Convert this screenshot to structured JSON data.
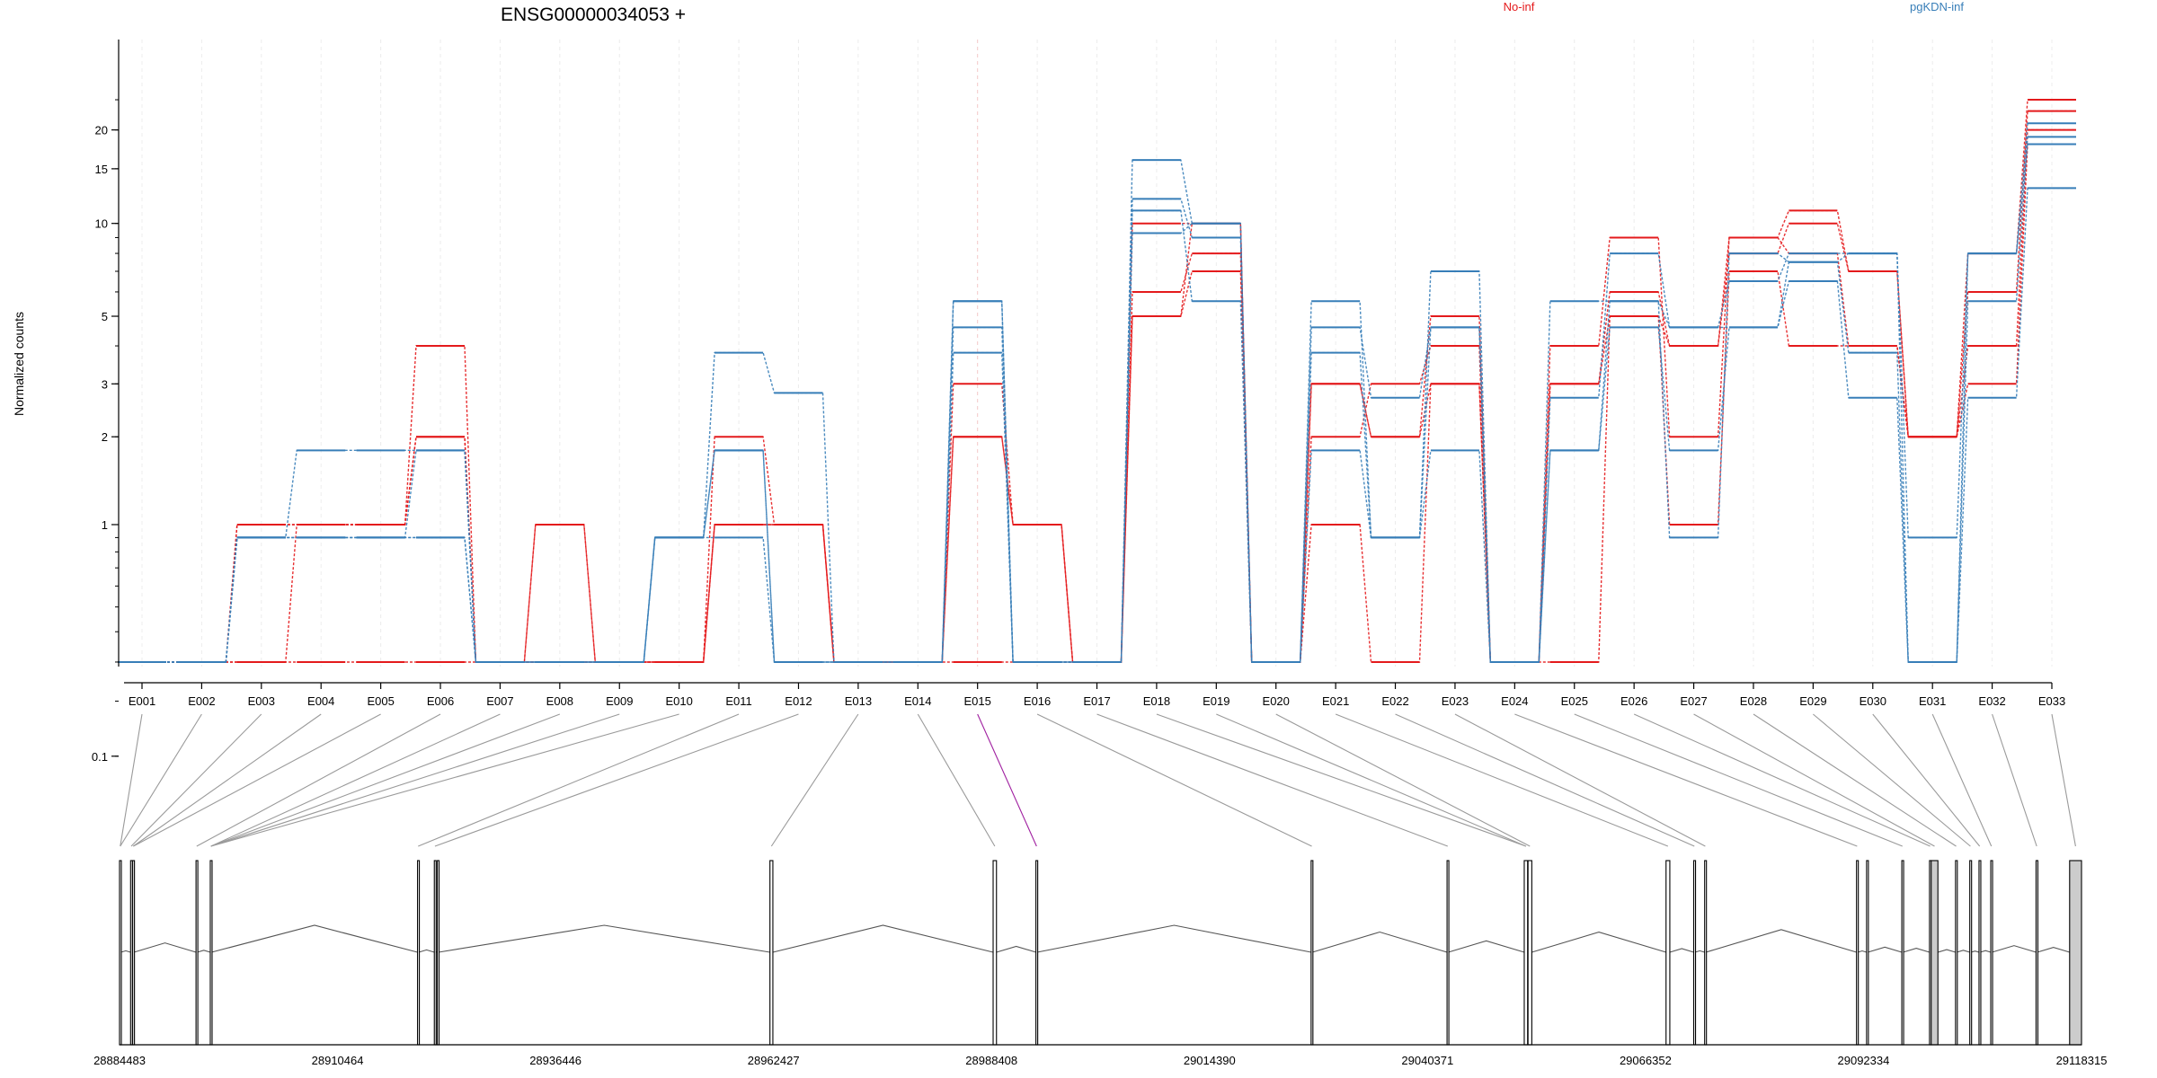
{
  "chart_data": {
    "type": "line",
    "title": "ENSG00000034053 +",
    "ylabel": "Normalized counts",
    "xlabel": "",
    "yscale": "log",
    "ytick_labels": [
      "0.1",
      "1",
      "2",
      "3",
      "5",
      "10",
      "15",
      "20"
    ],
    "categories": [
      "E001",
      "E002",
      "E003",
      "E004",
      "E005",
      "E006",
      "E007",
      "E008",
      "E009",
      "E010",
      "E011",
      "E012",
      "E013",
      "E014",
      "E015",
      "E016",
      "E017",
      "E018",
      "E019",
      "E020",
      "E021",
      "E022",
      "E023",
      "E024",
      "E025",
      "E026",
      "E027",
      "E028",
      "E029",
      "E030",
      "E031",
      "E032",
      "E033"
    ],
    "legend": [
      {
        "name": "No-inf",
        "color": "#e41a1c"
      },
      {
        "name": "pgKDN-inf",
        "color": "#377eb8"
      }
    ],
    "series": [
      {
        "group": "No-inf",
        "color": "#e41a1c",
        "values": [
          0,
          0,
          1,
          1,
          1,
          4,
          0,
          1,
          0,
          0,
          2,
          1,
          0,
          0,
          3,
          1,
          0,
          10,
          10,
          0,
          3,
          2,
          5,
          0,
          4,
          9,
          2,
          9,
          11,
          7,
          2,
          8,
          25
        ]
      },
      {
        "group": "No-inf",
        "color": "#e41a1c",
        "values": [
          0,
          0,
          1,
          1,
          1,
          2,
          0,
          1,
          0,
          0,
          1,
          1,
          0,
          0,
          2,
          1,
          0,
          6,
          8,
          0,
          2,
          3,
          4,
          0,
          3,
          6,
          4,
          8,
          10,
          7,
          2,
          6,
          23
        ]
      },
      {
        "group": "No-inf",
        "color": "#e41a1c",
        "values": [
          0,
          0,
          0,
          0,
          0,
          0,
          0,
          0,
          0,
          0,
          1,
          1,
          0,
          0,
          0,
          0,
          0,
          5,
          7,
          0,
          1,
          0,
          3,
          0,
          0,
          5,
          1,
          7,
          4,
          4,
          2,
          4,
          20
        ]
      },
      {
        "group": "No-inf",
        "color": "#e41a1c",
        "values": [
          0,
          0,
          0,
          1,
          1,
          2,
          0,
          0,
          0,
          0,
          1,
          1,
          0,
          0,
          2,
          1,
          0,
          5,
          10,
          0,
          3,
          2,
          3,
          0,
          3,
          5,
          4,
          9,
          8,
          4,
          2,
          3,
          18
        ]
      },
      {
        "group": "pgKDN-inf",
        "color": "#377eb8",
        "values": [
          0,
          0,
          0.9,
          1.8,
          1.8,
          1.8,
          0,
          0,
          0,
          0.9,
          3.8,
          2.8,
          0,
          0,
          5.6,
          0,
          0,
          16,
          10,
          0,
          4.6,
          2.7,
          4.6,
          0,
          2.7,
          8,
          4.6,
          6.5,
          8,
          8,
          0.9,
          8,
          21
        ]
      },
      {
        "group": "pgKDN-inf",
        "color": "#377eb8",
        "values": [
          0,
          0,
          0.9,
          0.9,
          0.9,
          0.9,
          0,
          0,
          0,
          0.9,
          0.9,
          0,
          0,
          0,
          3.8,
          0,
          0,
          12,
          9,
          0,
          3.8,
          0.9,
          1.8,
          0,
          1.8,
          4.6,
          1.8,
          4.6,
          6.5,
          2.7,
          0,
          5.6,
          19
        ]
      },
      {
        "group": "pgKDN-inf",
        "color": "#377eb8",
        "values": [
          0,
          0,
          0.9,
          0.9,
          0.9,
          1.8,
          0,
          0,
          0,
          0.9,
          1.8,
          0,
          0,
          0,
          4.6,
          0,
          0,
          11,
          5.6,
          0,
          5.6,
          0.9,
          4.6,
          0,
          1.8,
          5.6,
          4.6,
          4.6,
          7.5,
          3.8,
          0,
          8,
          18
        ]
      },
      {
        "group": "pgKDN-inf",
        "color": "#377eb8",
        "values": [
          0,
          0,
          0.9,
          0.9,
          0.9,
          0.9,
          0,
          0,
          0,
          0.9,
          1.8,
          0,
          0,
          0,
          5.6,
          0,
          0,
          9.3,
          10,
          0,
          1.8,
          0.9,
          7,
          0,
          5.6,
          5.6,
          0.9,
          8,
          7.5,
          8,
          0,
          2.7,
          13
        ]
      }
    ],
    "genomic_axis": {
      "tick_labels": [
        "28884483",
        "28910464",
        "28936446",
        "28962427",
        "28988408",
        "29014390",
        "29040371",
        "29066352",
        "29092334",
        "29118315"
      ],
      "min": 28884483,
      "max": 29118315,
      "highlight_exon": "E015",
      "exons": [
        {
          "start": 28884483,
          "end": 28884650
        },
        {
          "start": 28885800,
          "end": 28885950
        },
        {
          "start": 28886050,
          "end": 28886200
        },
        {
          "start": 28893600,
          "end": 28893750
        },
        {
          "start": 28895300,
          "end": 28895450
        },
        {
          "start": 28920000,
          "end": 28920150
        },
        {
          "start": 28922000,
          "end": 28922150
        },
        {
          "start": 28922350,
          "end": 28922500
        },
        {
          "start": 28962000,
          "end": 28962350
        },
        {
          "start": 28988600,
          "end": 28989000
        },
        {
          "start": 28993700,
          "end": 28993850
        },
        {
          "start": 29026500,
          "end": 29026650
        },
        {
          "start": 29042700,
          "end": 29042850
        },
        {
          "start": 29051900,
          "end": 29052300
        },
        {
          "start": 29052350,
          "end": 29052800
        },
        {
          "start": 29068800,
          "end": 29069250
        },
        {
          "start": 29072100,
          "end": 29072250
        },
        {
          "start": 29073400,
          "end": 29073550
        },
        {
          "start": 29091500,
          "end": 29091650
        },
        {
          "start": 29092700,
          "end": 29092850
        },
        {
          "start": 29096900,
          "end": 29097050
        },
        {
          "start": 29100200,
          "end": 29100350
        },
        {
          "start": 29100400,
          "end": 29101200
        },
        {
          "start": 29103300,
          "end": 29103450
        },
        {
          "start": 29105000,
          "end": 29105150
        },
        {
          "start": 29106100,
          "end": 29106250
        },
        {
          "start": 29107500,
          "end": 29107650
        },
        {
          "start": 29112900,
          "end": 29113050
        },
        {
          "start": 29116900,
          "end": 29118315
        }
      ],
      "exon_bin_index": [
        0,
        0,
        1,
        2,
        2,
        3,
        4,
        4,
        4,
        4,
        5,
        6,
        8,
        9,
        10,
        11,
        12,
        13,
        13,
        14,
        15,
        16,
        17,
        18,
        20,
        21,
        22,
        23,
        24,
        25,
        26,
        27,
        28
      ]
    }
  }
}
